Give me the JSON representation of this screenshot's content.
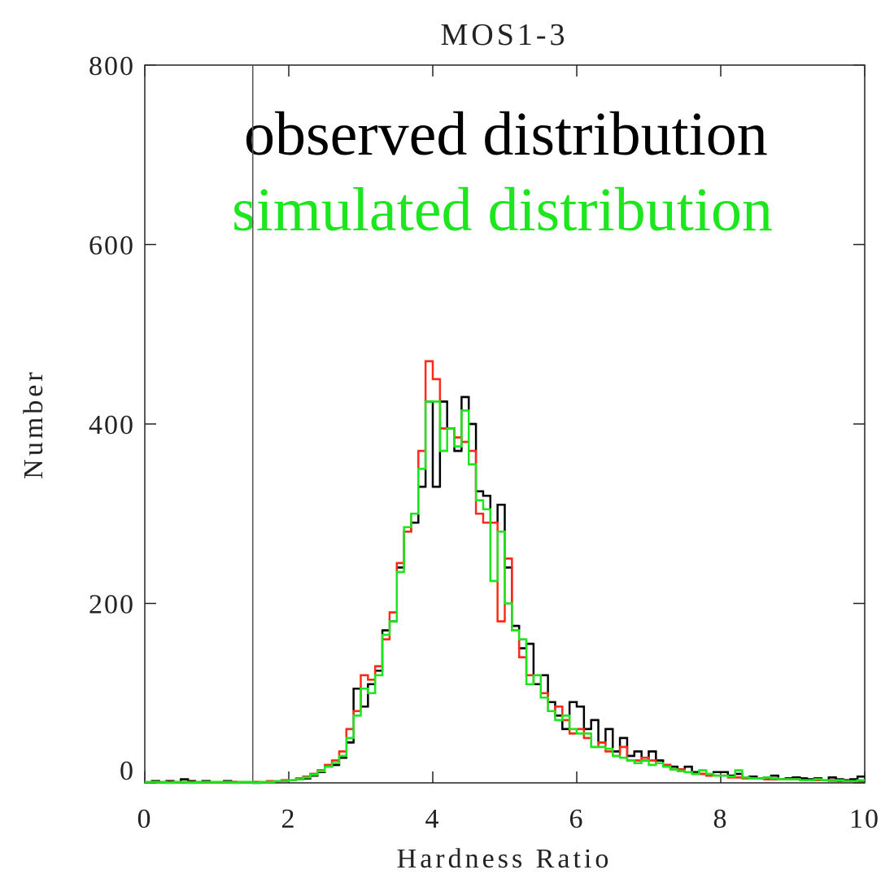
{
  "chart_data": {
    "type": "histogram",
    "title": "MOS1-3",
    "xlabel": "Hardness Ratio",
    "ylabel": "Number",
    "xlim": [
      0,
      10
    ],
    "ylim": [
      0,
      800
    ],
    "xticks": [
      0,
      2,
      4,
      6,
      8,
      10
    ],
    "yticks": [
      0,
      200,
      400,
      600,
      800
    ],
    "vline": 1.5,
    "bins": [
      0,
      0.1,
      0.2,
      0.3,
      0.4,
      0.5,
      0.6,
      0.7,
      0.8,
      0.9,
      1,
      1.1,
      1.2,
      1.3,
      1.4,
      1.5,
      1.6,
      1.7,
      1.8,
      1.9,
      2,
      2.1,
      2.2,
      2.3,
      2.4,
      2.5,
      2.6,
      2.7,
      2.8,
      2.9,
      3,
      3.1,
      3.2,
      3.3,
      3.4,
      3.5,
      3.6,
      3.7,
      3.8,
      3.9,
      4,
      4.1,
      4.2,
      4.3,
      4.4,
      4.5,
      4.6,
      4.7,
      4.8,
      4.9,
      5,
      5.1,
      5.2,
      5.3,
      5.4,
      5.5,
      5.6,
      5.7,
      5.8,
      5.9,
      6,
      6.1,
      6.2,
      6.3,
      6.4,
      6.5,
      6.6,
      6.7,
      6.8,
      6.9,
      7,
      7.1,
      7.2,
      7.3,
      7.4,
      7.5,
      7.6,
      7.7,
      7.8,
      7.9,
      8,
      8.1,
      8.2,
      8.3,
      8.4,
      8.5,
      8.6,
      8.7,
      8.8,
      8.9,
      9,
      9.1,
      9.2,
      9.3,
      9.4,
      9.5,
      9.6,
      9.7,
      9.8,
      9.9,
      10
    ],
    "series": [
      {
        "name": "observed distribution",
        "color": "#000000",
        "values": [
          1,
          2,
          1,
          2,
          1,
          4,
          2,
          1,
          2,
          1,
          1,
          2,
          1,
          1,
          1,
          0,
          1,
          2,
          2,
          3,
          3,
          4,
          5,
          8,
          12,
          18,
          20,
          28,
          45,
          105,
          85,
          110,
          125,
          170,
          180,
          240,
          280,
          290,
          330,
          425,
          330,
          425,
          395,
          370,
          430,
          400,
          325,
          320,
          290,
          310,
          240,
          175,
          150,
          155,
          110,
          120,
          90,
          75,
          60,
          90,
          85,
          60,
          70,
          45,
          60,
          35,
          50,
          30,
          35,
          25,
          35,
          25,
          20,
          18,
          15,
          18,
          12,
          10,
          8,
          12,
          12,
          8,
          10,
          6,
          7,
          5,
          6,
          8,
          4,
          5,
          6,
          5,
          4,
          5,
          3,
          6,
          4,
          3,
          4,
          7
        ]
      },
      {
        "color": "#ff2a1a",
        "values": [
          1,
          1,
          1,
          1,
          1,
          1,
          1,
          1,
          1,
          1,
          1,
          1,
          1,
          1,
          1,
          1,
          1,
          2,
          2,
          3,
          3,
          5,
          7,
          10,
          14,
          20,
          25,
          35,
          60,
          80,
          120,
          115,
          130,
          160,
          190,
          245,
          280,
          300,
          370,
          470,
          450,
          395,
          395,
          385,
          380,
          370,
          300,
          290,
          290,
          180,
          250,
          170,
          140,
          120,
          120,
          100,
          80,
          85,
          70,
          55,
          60,
          50,
          40,
          45,
          35,
          30,
          40,
          25,
          25,
          28,
          25,
          22,
          20,
          15,
          15,
          12,
          10,
          10,
          8,
          8,
          8,
          6,
          6,
          5,
          5,
          5,
          4,
          4,
          4,
          4,
          4,
          3,
          3,
          3,
          3,
          3,
          2,
          2,
          2,
          2
        ]
      },
      {
        "name": "simulated distribution",
        "color": "#1ee61e",
        "values": [
          1,
          1,
          1,
          0,
          1,
          1,
          0,
          1,
          1,
          1,
          1,
          1,
          0,
          1,
          1,
          0,
          1,
          1,
          2,
          2,
          3,
          4,
          6,
          9,
          13,
          18,
          22,
          30,
          50,
          75,
          105,
          100,
          120,
          165,
          180,
          235,
          285,
          300,
          350,
          425,
          425,
          370,
          395,
          375,
          415,
          355,
          315,
          305,
          225,
          280,
          200,
          170,
          160,
          110,
          120,
          95,
          80,
          70,
          75,
          60,
          55,
          55,
          40,
          40,
          38,
          30,
          28,
          25,
          22,
          25,
          20,
          22,
          18,
          15,
          13,
          12,
          10,
          14,
          10,
          8,
          8,
          7,
          14,
          6,
          5,
          5,
          6,
          5,
          4,
          4,
          4,
          3,
          3,
          4,
          3,
          2,
          3,
          2,
          2,
          3
        ]
      }
    ]
  }
}
